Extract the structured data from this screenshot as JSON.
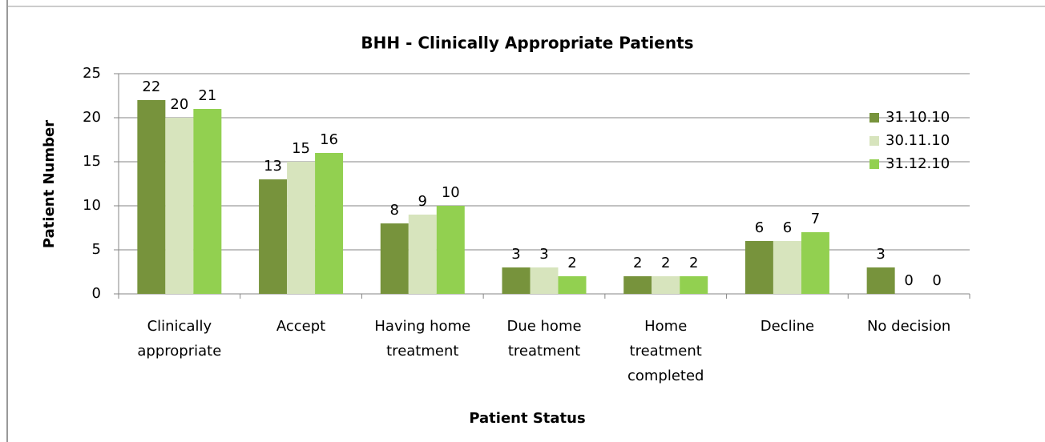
{
  "chart_data": {
    "type": "bar",
    "title": "BHH - Clinically Appropriate Patients",
    "x_label": "Patient Status",
    "y_label": "Patient Number",
    "categories": [
      "Clinically appropriate",
      "Accept",
      "Having home treatment",
      "Due home treatment",
      "Home treatment completed",
      "Decline",
      "No decision"
    ],
    "series": [
      {
        "name": "31.10.10",
        "color": "#77933c",
        "values": [
          22,
          13,
          8,
          3,
          2,
          6,
          3
        ]
      },
      {
        "name": "30.11.10",
        "color": "#d7e4bd",
        "values": [
          20,
          15,
          9,
          3,
          2,
          6,
          0
        ]
      },
      {
        "name": "31.12.10",
        "color": "#92d050",
        "values": [
          21,
          16,
          10,
          2,
          2,
          7,
          0
        ]
      }
    ],
    "ylim": [
      0,
      25
    ],
    "yticks": [
      0,
      5,
      10,
      15,
      20,
      25
    ],
    "grid": true,
    "legend": "right"
  }
}
